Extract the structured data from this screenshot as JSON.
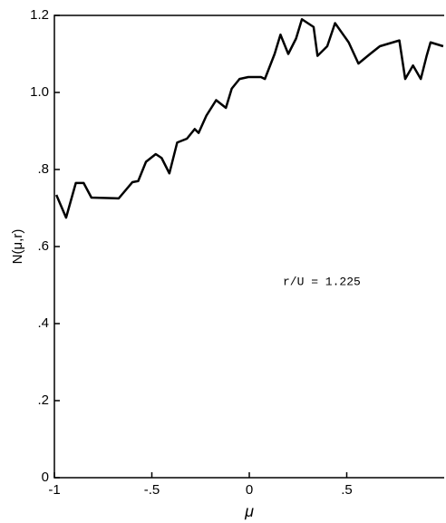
{
  "chart_data": {
    "type": "line",
    "xlabel": "μ",
    "ylabel": "N(μ,r)",
    "annotation": "r/U = 1.225",
    "xlim": [
      -1,
      1
    ],
    "ylim": [
      0,
      1.2
    ],
    "xticks": [
      -1,
      {
        "value": -0.5,
        "label": "-.5"
      },
      0,
      {
        "value": 0.5,
        "label": ".5"
      }
    ],
    "yticks": [
      0,
      {
        "value": 0.2,
        "label": ".2"
      },
      {
        "value": 0.4,
        "label": ".4"
      },
      {
        "value": 0.6,
        "label": ".6"
      },
      {
        "value": 0.8,
        "label": ".8"
      },
      {
        "value": 1.0,
        "label": "1.0"
      },
      {
        "value": 1.2,
        "label": "1.2"
      }
    ],
    "color": "#000000",
    "x": [
      -0.99,
      -0.94,
      -0.89,
      -0.85,
      -0.81,
      -0.67,
      -0.6,
      -0.57,
      -0.53,
      -0.48,
      -0.45,
      -0.41,
      -0.37,
      -0.32,
      -0.28,
      -0.26,
      -0.22,
      -0.17,
      -0.12,
      -0.09,
      -0.05,
      -0.005,
      0.06,
      0.08,
      0.13,
      0.16,
      0.2,
      0.24,
      0.27,
      0.33,
      0.35,
      0.4,
      0.44,
      0.51,
      0.56,
      0.62,
      0.67,
      0.77,
      0.8,
      0.84,
      0.88,
      0.91,
      0.93,
      0.995
    ],
    "values": [
      0.734,
      0.675,
      0.765,
      0.765,
      0.727,
      0.725,
      0.767,
      0.77,
      0.82,
      0.84,
      0.83,
      0.79,
      0.87,
      0.88,
      0.905,
      0.895,
      0.94,
      0.98,
      0.96,
      1.01,
      1.035,
      1.04,
      1.04,
      1.035,
      1.1,
      1.15,
      1.1,
      1.14,
      1.19,
      1.17,
      1.095,
      1.12,
      1.18,
      1.13,
      1.075,
      1.1,
      1.12,
      1.135,
      1.035,
      1.07,
      1.035,
      1.095,
      1.13,
      1.12
    ]
  }
}
